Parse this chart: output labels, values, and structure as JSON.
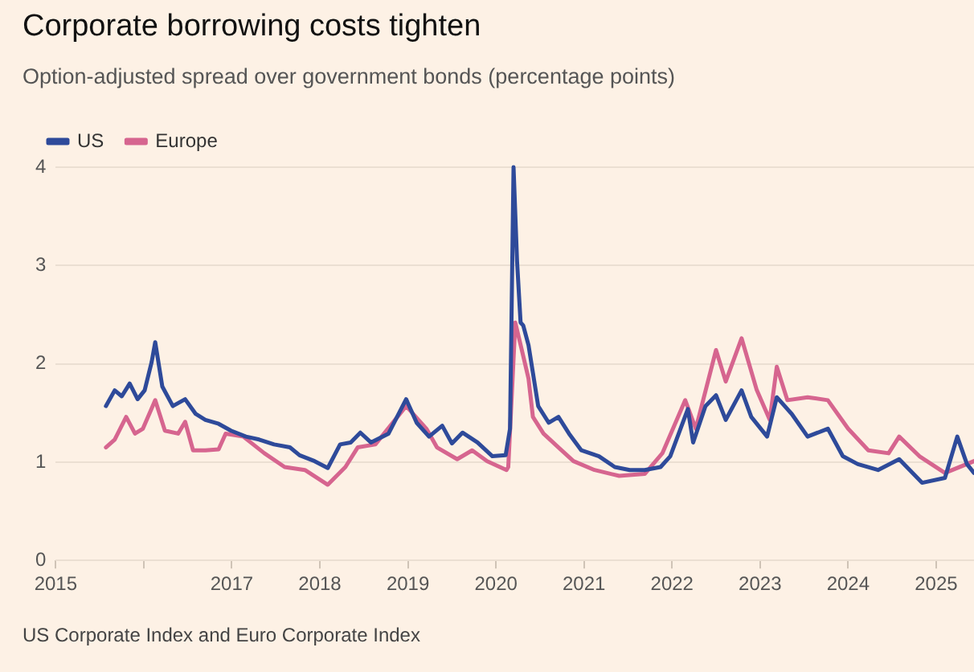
{
  "chart_data": {
    "type": "line",
    "title": "Corporate borrowing costs tighten",
    "subtitle": "Option-adjusted spread over government bonds (percentage points)",
    "annotations": [
      "US Corporate Index and Euro Corporate Index"
    ],
    "xlim": [
      2015,
      2025.43
    ],
    "xticks": [
      2015,
      {
        "value": 2016,
        "label": null
      },
      2017,
      2018,
      2019,
      2020,
      2021,
      2022,
      2023,
      2024,
      2025
    ],
    "ylim": [
      0,
      4
    ],
    "yticks": [
      0,
      1,
      2,
      3,
      4
    ],
    "grid": "y",
    "legend": "top left",
    "marker": "none",
    "line_style": "solid",
    "series": [
      {
        "name": "US",
        "color": "#2e4a9a",
        "x": [
          2015.57,
          2015.67,
          2015.75,
          2015.84,
          2015.93,
          2016.01,
          2016.09,
          2016.13,
          2016.21,
          2016.33,
          2016.47,
          2016.59,
          2016.7,
          2016.85,
          2016.99,
          2017.16,
          2017.31,
          2017.48,
          2017.66,
          2017.77,
          2017.94,
          2018.09,
          2018.23,
          2018.35,
          2018.46,
          2018.58,
          2018.78,
          2018.98,
          2019.1,
          2019.24,
          2019.39,
          2019.5,
          2019.62,
          2019.79,
          2019.96,
          2020.11,
          2020.16,
          2020.2,
          2020.24,
          2020.28,
          2020.31,
          2020.37,
          2020.48,
          2020.6,
          2020.71,
          2020.83,
          2020.97,
          2021.17,
          2021.35,
          2021.52,
          2021.69,
          2021.87,
          2021.98,
          2022.18,
          2022.24,
          2022.38,
          2022.5,
          2022.61,
          2022.79,
          2022.9,
          2023.08,
          2023.19,
          2023.36,
          2023.54,
          2023.77,
          2023.94,
          2024.11,
          2024.34,
          2024.58,
          2024.84,
          2025.1,
          2025.24,
          2025.35,
          2025.43
        ],
        "values": [
          1.57,
          1.73,
          1.67,
          1.8,
          1.64,
          1.73,
          2.02,
          2.22,
          1.77,
          1.57,
          1.64,
          1.49,
          1.43,
          1.39,
          1.32,
          1.26,
          1.23,
          1.18,
          1.15,
          1.07,
          1.01,
          0.94,
          1.18,
          1.2,
          1.3,
          1.2,
          1.29,
          1.64,
          1.4,
          1.26,
          1.37,
          1.19,
          1.3,
          1.2,
          1.06,
          1.07,
          1.34,
          4.0,
          3.04,
          2.42,
          2.39,
          2.19,
          1.57,
          1.4,
          1.46,
          1.29,
          1.12,
          1.06,
          0.95,
          0.92,
          0.92,
          0.95,
          1.06,
          1.54,
          1.2,
          1.57,
          1.68,
          1.43,
          1.73,
          1.46,
          1.26,
          1.66,
          1.49,
          1.26,
          1.34,
          1.06,
          0.98,
          0.92,
          1.03,
          0.79,
          0.84,
          1.26,
          0.98,
          0.89
        ]
      },
      {
        "name": "Europe",
        "color": "#d6658f",
        "x": [
          2015.57,
          2015.67,
          2015.8,
          2015.9,
          2015.99,
          2016.13,
          2016.24,
          2016.39,
          2016.47,
          2016.56,
          2016.7,
          2016.85,
          2016.93,
          2017.13,
          2017.37,
          2017.6,
          2017.83,
          2018.09,
          2018.29,
          2018.43,
          2018.63,
          2018.98,
          2019.21,
          2019.33,
          2019.56,
          2019.73,
          2019.9,
          2020.12,
          2020.14,
          2020.22,
          2020.31,
          2020.37,
          2020.42,
          2020.54,
          2020.71,
          2020.88,
          2021.12,
          2021.4,
          2021.69,
          2021.89,
          2022.15,
          2022.27,
          2022.5,
          2022.61,
          2022.79,
          2022.96,
          2023.11,
          2023.19,
          2023.31,
          2023.54,
          2023.77,
          2024.0,
          2024.23,
          2024.46,
          2024.58,
          2024.81,
          2025.1,
          2025.43
        ],
        "values": [
          1.15,
          1.23,
          1.46,
          1.29,
          1.34,
          1.63,
          1.32,
          1.29,
          1.41,
          1.12,
          1.12,
          1.13,
          1.29,
          1.26,
          1.09,
          0.95,
          0.92,
          0.77,
          0.95,
          1.15,
          1.18,
          1.57,
          1.34,
          1.15,
          1.03,
          1.12,
          1.01,
          0.92,
          0.95,
          2.42,
          2.08,
          1.85,
          1.46,
          1.29,
          1.15,
          1.01,
          0.92,
          0.86,
          0.88,
          1.09,
          1.63,
          1.34,
          2.14,
          1.82,
          2.26,
          1.74,
          1.43,
          1.97,
          1.63,
          1.66,
          1.63,
          1.34,
          1.12,
          1.09,
          1.26,
          1.06,
          0.89,
          1.01
        ]
      }
    ]
  }
}
